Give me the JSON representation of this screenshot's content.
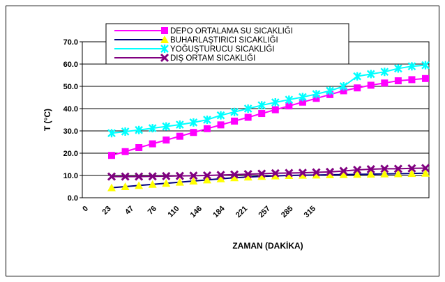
{
  "chart_data": {
    "type": "line",
    "title": "",
    "xlabel": "ZAMAN (DAKİKA)",
    "ylabel": "T (°C)",
    "ylim": [
      0,
      70
    ],
    "yticks": [
      "0.0",
      "10.0",
      "20.0",
      "30.0",
      "40.0",
      "50.0",
      "60.0",
      "70.0"
    ],
    "x_tick_labels": [
      "0",
      "23",
      "47",
      "76",
      "110",
      "146",
      "184",
      "221",
      "257",
      "285",
      "315"
    ],
    "grid": "horizontal",
    "legend": "top",
    "point_count": 24,
    "series": [
      {
        "name": "DEPO ORTALAMA SU SICAKLIĞI",
        "color": "#ff00ff",
        "marker": "square",
        "values": [
          19.0,
          20.7,
          22.5,
          24.2,
          25.9,
          27.6,
          29.3,
          31.0,
          32.7,
          34.4,
          36.1,
          37.8,
          39.5,
          41.2,
          42.9,
          44.6,
          46.3,
          48.0,
          49.3,
          50.5,
          51.5,
          52.5,
          53.0,
          53.5
        ]
      },
      {
        "name": "BUHARLAŞTIRICI SICAKLIĞI",
        "color": "#ffff00",
        "line_color": "#000080",
        "marker": "triangle",
        "values": [
          4.5,
          5.0,
          5.5,
          6.0,
          6.5,
          7.0,
          7.5,
          8.0,
          8.5,
          9.0,
          9.3,
          9.6,
          9.8,
          10.0,
          10.1,
          10.2,
          10.3,
          10.4,
          10.5,
          10.6,
          10.7,
          10.8,
          10.9,
          11.0
        ]
      },
      {
        "name": "YOĞUŞTURUCU SICAKLIĞI",
        "color": "#00ffff",
        "marker": "star",
        "values": [
          29.0,
          29.7,
          30.4,
          31.2,
          32.0,
          32.8,
          33.8,
          35.0,
          37.0,
          38.5,
          40.0,
          41.5,
          42.8,
          44.0,
          45.2,
          46.5,
          48.0,
          50.0,
          54.5,
          55.5,
          56.5,
          58.0,
          59.0,
          59.5
        ]
      },
      {
        "name": "DIŞ ORTAM SICAKLIĞI",
        "color": "#800080",
        "marker": "x",
        "values": [
          9.5,
          9.5,
          9.5,
          9.6,
          9.7,
          9.8,
          9.9,
          10.0,
          10.2,
          10.4,
          10.6,
          10.8,
          11.0,
          11.1,
          11.2,
          11.4,
          11.6,
          12.0,
          12.5,
          12.8,
          13.0,
          13.0,
          13.2,
          13.3
        ]
      }
    ]
  }
}
